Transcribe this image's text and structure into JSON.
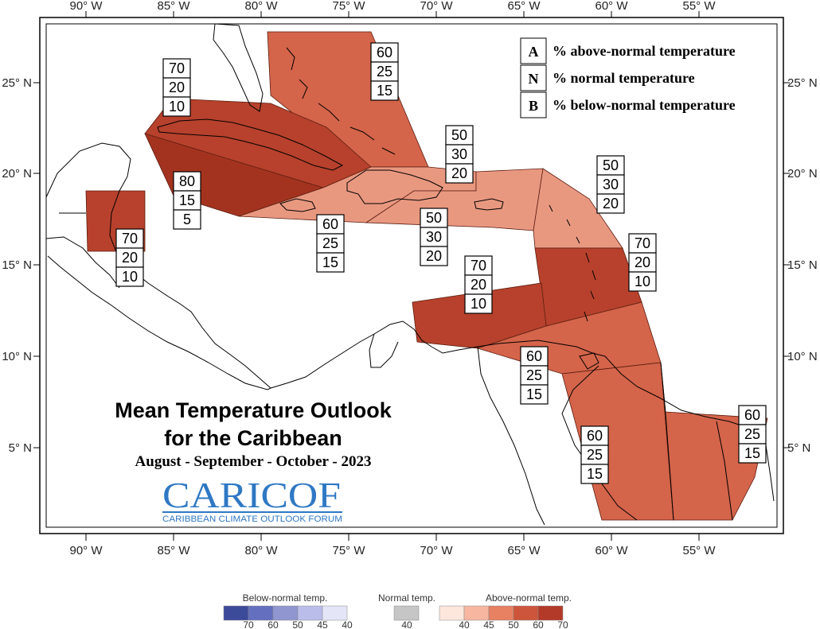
{
  "map": {
    "lon_ticks": [
      "90° W",
      "85° W",
      "80° W",
      "75° W",
      "70° W",
      "65° W",
      "60° W",
      "55° W"
    ],
    "lat_ticks": [
      "25° N",
      "20° N",
      "15° N",
      "10° N",
      "5° N"
    ],
    "colors": {
      "p50": "#e99880",
      "p60": "#d4644a",
      "p70": "#b7412c",
      "p80": "#a3331f",
      "outline": "#000000"
    }
  },
  "legend": {
    "rows": [
      {
        "letter": "A",
        "text": "% above-normal temperature"
      },
      {
        "letter": "N",
        "text": "% normal temperature"
      },
      {
        "letter": "B",
        "text": "% below-normal temperature"
      }
    ]
  },
  "regions": [
    {
      "id": "bahamas",
      "A": "60",
      "N": "25",
      "B": "15",
      "level": 60
    },
    {
      "id": "cuba",
      "A": "70",
      "N": "20",
      "B": "10",
      "level": 70
    },
    {
      "id": "jamaica-cayman",
      "A": "80",
      "N": "15",
      "B": "5",
      "level": 80
    },
    {
      "id": "haiti-dr",
      "A": "50",
      "N": "30",
      "B": "20",
      "level": 50
    },
    {
      "id": "puerto-rico",
      "A": "50",
      "N": "30",
      "B": "20",
      "level": 50
    },
    {
      "id": "leeward",
      "A": "50",
      "N": "30",
      "B": "20",
      "level": 50
    },
    {
      "id": "belize",
      "A": "70",
      "N": "20",
      "B": "10",
      "level": 70
    },
    {
      "id": "jamaica-south",
      "A": "60",
      "N": "25",
      "B": "15",
      "level": 60
    },
    {
      "id": "windward",
      "A": "70",
      "N": "20",
      "B": "10",
      "level": 70
    },
    {
      "id": "abc-islands",
      "A": "70",
      "N": "20",
      "B": "10",
      "level": 70
    },
    {
      "id": "trinidad",
      "A": "60",
      "N": "25",
      "B": "15",
      "level": 60
    },
    {
      "id": "guyana",
      "A": "60",
      "N": "25",
      "B": "15",
      "level": 60
    },
    {
      "id": "suriname-guiana",
      "A": "60",
      "N": "25",
      "B": "15",
      "level": 60
    }
  ],
  "title": {
    "line1": "Mean Temperature Outlook",
    "line2": "for the Caribbean",
    "period": "August - September - October - 2023"
  },
  "logo": {
    "main": "CARICOF",
    "sub": "CARIBBEAN CLIMATE OUTLOOK FORUM"
  },
  "scale": {
    "below_title": "Below-normal temp.",
    "normal_title": "Normal temp.",
    "above_title": "Above-normal temp.",
    "below_colors": [
      "#3c4a9a",
      "#6470bf",
      "#8f96d0",
      "#babdea",
      "#e4e6f8"
    ],
    "below_labels": [
      "70",
      "60",
      "50",
      "45",
      "40"
    ],
    "normal_color": "#c6c6c6",
    "normal_label": "40",
    "above_colors": [
      "#fde7dc",
      "#f6b6a0",
      "#e88162",
      "#cd553b",
      "#b33a28"
    ],
    "above_labels": [
      "40",
      "45",
      "50",
      "60",
      "70"
    ]
  }
}
